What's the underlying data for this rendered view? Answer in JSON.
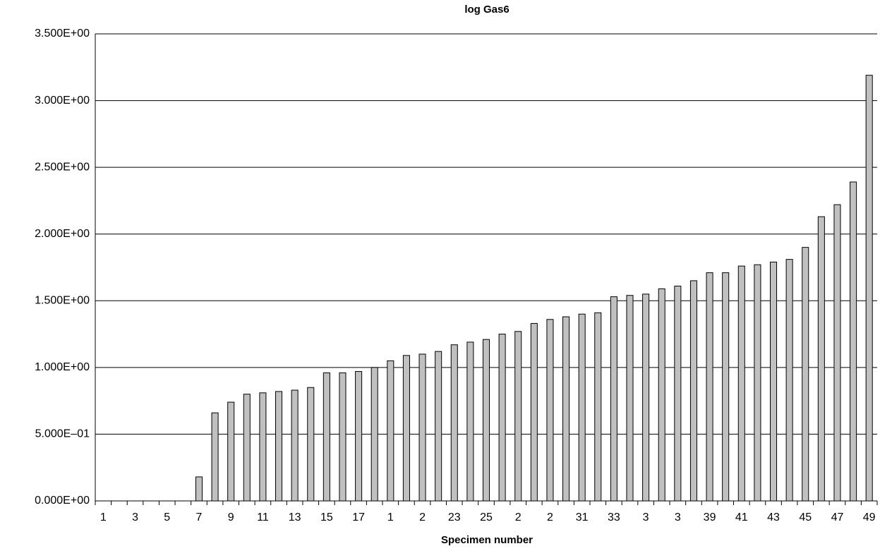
{
  "chart_data": {
    "type": "bar",
    "title": "log Gas6",
    "x_label": "Specimen number",
    "categories": [
      "1",
      null,
      "3",
      null,
      "5",
      null,
      "7",
      null,
      "9",
      null,
      "11",
      null,
      "13",
      null,
      "15",
      null,
      "17",
      null,
      "1",
      null,
      "2",
      null,
      "23",
      null,
      "25",
      null,
      "2",
      null,
      "2",
      null,
      "31",
      null,
      "33",
      null,
      "3",
      null,
      "3",
      null,
      "39",
      null,
      "41",
      null,
      "43",
      null,
      "45",
      null,
      "47",
      null,
      "49"
    ],
    "values": [
      0,
      0,
      0,
      0,
      0,
      0,
      0.18,
      0.66,
      0.74,
      0.8,
      0.81,
      0.82,
      0.83,
      0.85,
      0.96,
      0.96,
      0.97,
      1.0,
      1.05,
      1.09,
      1.1,
      1.12,
      1.17,
      1.19,
      1.21,
      1.25,
      1.27,
      1.33,
      1.36,
      1.38,
      1.4,
      1.41,
      1.53,
      1.54,
      1.55,
      1.59,
      1.61,
      1.65,
      1.71,
      1.71,
      1.76,
      1.77,
      1.79,
      1.81,
      1.9,
      2.13,
      2.22,
      2.39,
      3.19
    ],
    "color": "#c0c0c0",
    "ylim": [
      0,
      3.5
    ],
    "yticks": [
      {
        "value": 0,
        "label": "0.000E+00"
      },
      {
        "value": 0.5,
        "label": "5.000E–01"
      },
      {
        "value": 1,
        "label": "1.000E+00"
      },
      {
        "value": 1.5,
        "label": "1.500E+00"
      },
      {
        "value": 2,
        "label": "2.000E+00"
      },
      {
        "value": 2.5,
        "label": "2.500E+00"
      },
      {
        "value": 3,
        "label": "3.000E+00"
      },
      {
        "value": 3.5,
        "label": "3.500E+00"
      }
    ],
    "grid": true
  }
}
